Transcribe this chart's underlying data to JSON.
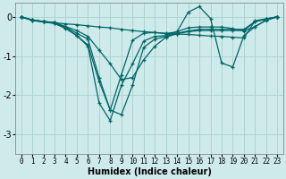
{
  "xlabel": "Humidex (Indice chaleur)",
  "bg_color": "#ceeaea",
  "grid_color": "#afd4d4",
  "line_color": "#006666",
  "xlim": [
    -0.5,
    23.5
  ],
  "ylim": [
    -3.5,
    0.35
  ],
  "xticks": [
    0,
    1,
    2,
    3,
    4,
    5,
    6,
    7,
    8,
    9,
    10,
    11,
    12,
    13,
    14,
    15,
    16,
    17,
    18,
    19,
    20,
    21,
    22,
    23
  ],
  "yticks": [
    0,
    -1,
    -2,
    -3
  ],
  "series": [
    [
      0.0,
      -0.08,
      -0.12,
      -0.15,
      -0.18,
      -0.2,
      -0.23,
      -0.26,
      -0.28,
      -0.32,
      -0.35,
      -0.38,
      -0.4,
      -0.42,
      -0.44,
      -0.45,
      -0.47,
      -0.49,
      -0.5,
      -0.52,
      -0.54,
      -0.1,
      -0.05,
      0.0
    ],
    [
      0.0,
      -0.08,
      -0.12,
      -0.15,
      -0.25,
      -0.35,
      -0.5,
      -0.85,
      -1.2,
      -1.6,
      -1.55,
      -1.1,
      -0.75,
      -0.52,
      -0.43,
      -0.38,
      -0.35,
      -0.35,
      -0.35,
      -0.35,
      -0.35,
      -0.12,
      -0.06,
      0.0
    ],
    [
      0.0,
      -0.09,
      -0.13,
      -0.17,
      -0.3,
      -0.48,
      -0.72,
      -1.65,
      -2.38,
      -2.5,
      -1.75,
      -0.78,
      -0.57,
      -0.5,
      -0.42,
      -0.36,
      -0.32,
      -0.32,
      -0.32,
      -0.32,
      -0.32,
      -0.12,
      -0.06,
      0.0
    ],
    [
      0.0,
      -0.09,
      -0.13,
      -0.16,
      -0.28,
      -0.48,
      -0.75,
      -2.2,
      -2.65,
      -1.75,
      -1.2,
      -0.62,
      -0.5,
      -0.48,
      -0.38,
      -0.28,
      -0.26,
      -0.26,
      -0.26,
      -0.3,
      -0.36,
      -0.25,
      -0.08,
      0.0
    ],
    [
      0.0,
      -0.08,
      -0.12,
      -0.14,
      -0.26,
      -0.42,
      -0.57,
      -1.55,
      -2.38,
      -1.48,
      -0.6,
      -0.42,
      -0.4,
      -0.43,
      -0.38,
      0.12,
      0.26,
      -0.04,
      -1.18,
      -1.28,
      -0.48,
      -0.25,
      -0.09,
      0.0
    ]
  ]
}
